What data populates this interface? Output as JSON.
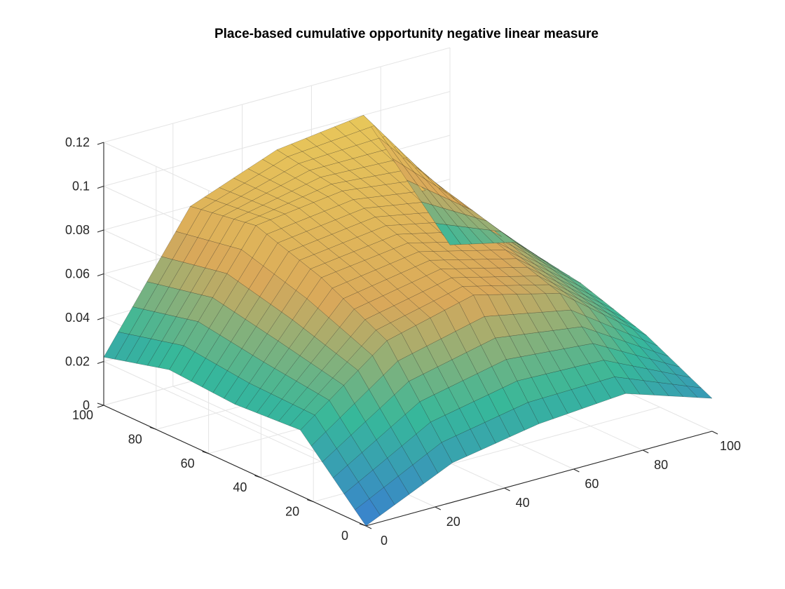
{
  "chart_data": {
    "type": "surface",
    "title": "Place-based cumulative opportunity negative linear measure",
    "xlabel": "",
    "ylabel": "",
    "zlabel": "",
    "x_ticks": [
      0,
      20,
      40,
      60,
      80,
      100
    ],
    "y_ticks": [
      0,
      20,
      40,
      60,
      80,
      100
    ],
    "z_ticks": [
      "0",
      "0.02",
      "0.04",
      "0.06",
      "0.08",
      "0.1",
      "0.12"
    ],
    "xlim": [
      0,
      100
    ],
    "ylim": [
      0,
      100
    ],
    "zlim": [
      0,
      0.12
    ],
    "grid": true,
    "colormap": "parula",
    "colors": {
      "low": "#3a7fd0",
      "mid": "#37b89a",
      "high": "#d9a85a",
      "peak": "#e9c95a",
      "edge": "#000000"
    },
    "grid_points": [
      0,
      25,
      50,
      75,
      100
    ],
    "z_values": [
      [
        0.0,
        0.03,
        0.028,
        0.03,
        0.022
      ],
      [
        0.018,
        0.06,
        0.075,
        0.085,
        0.08
      ],
      [
        0.025,
        0.07,
        0.08,
        0.09,
        0.095
      ],
      [
        0.028,
        0.06,
        0.07,
        0.085,
        0.1
      ],
      [
        0.015,
        0.03,
        0.04,
        0.045,
        0.03
      ]
    ]
  }
}
